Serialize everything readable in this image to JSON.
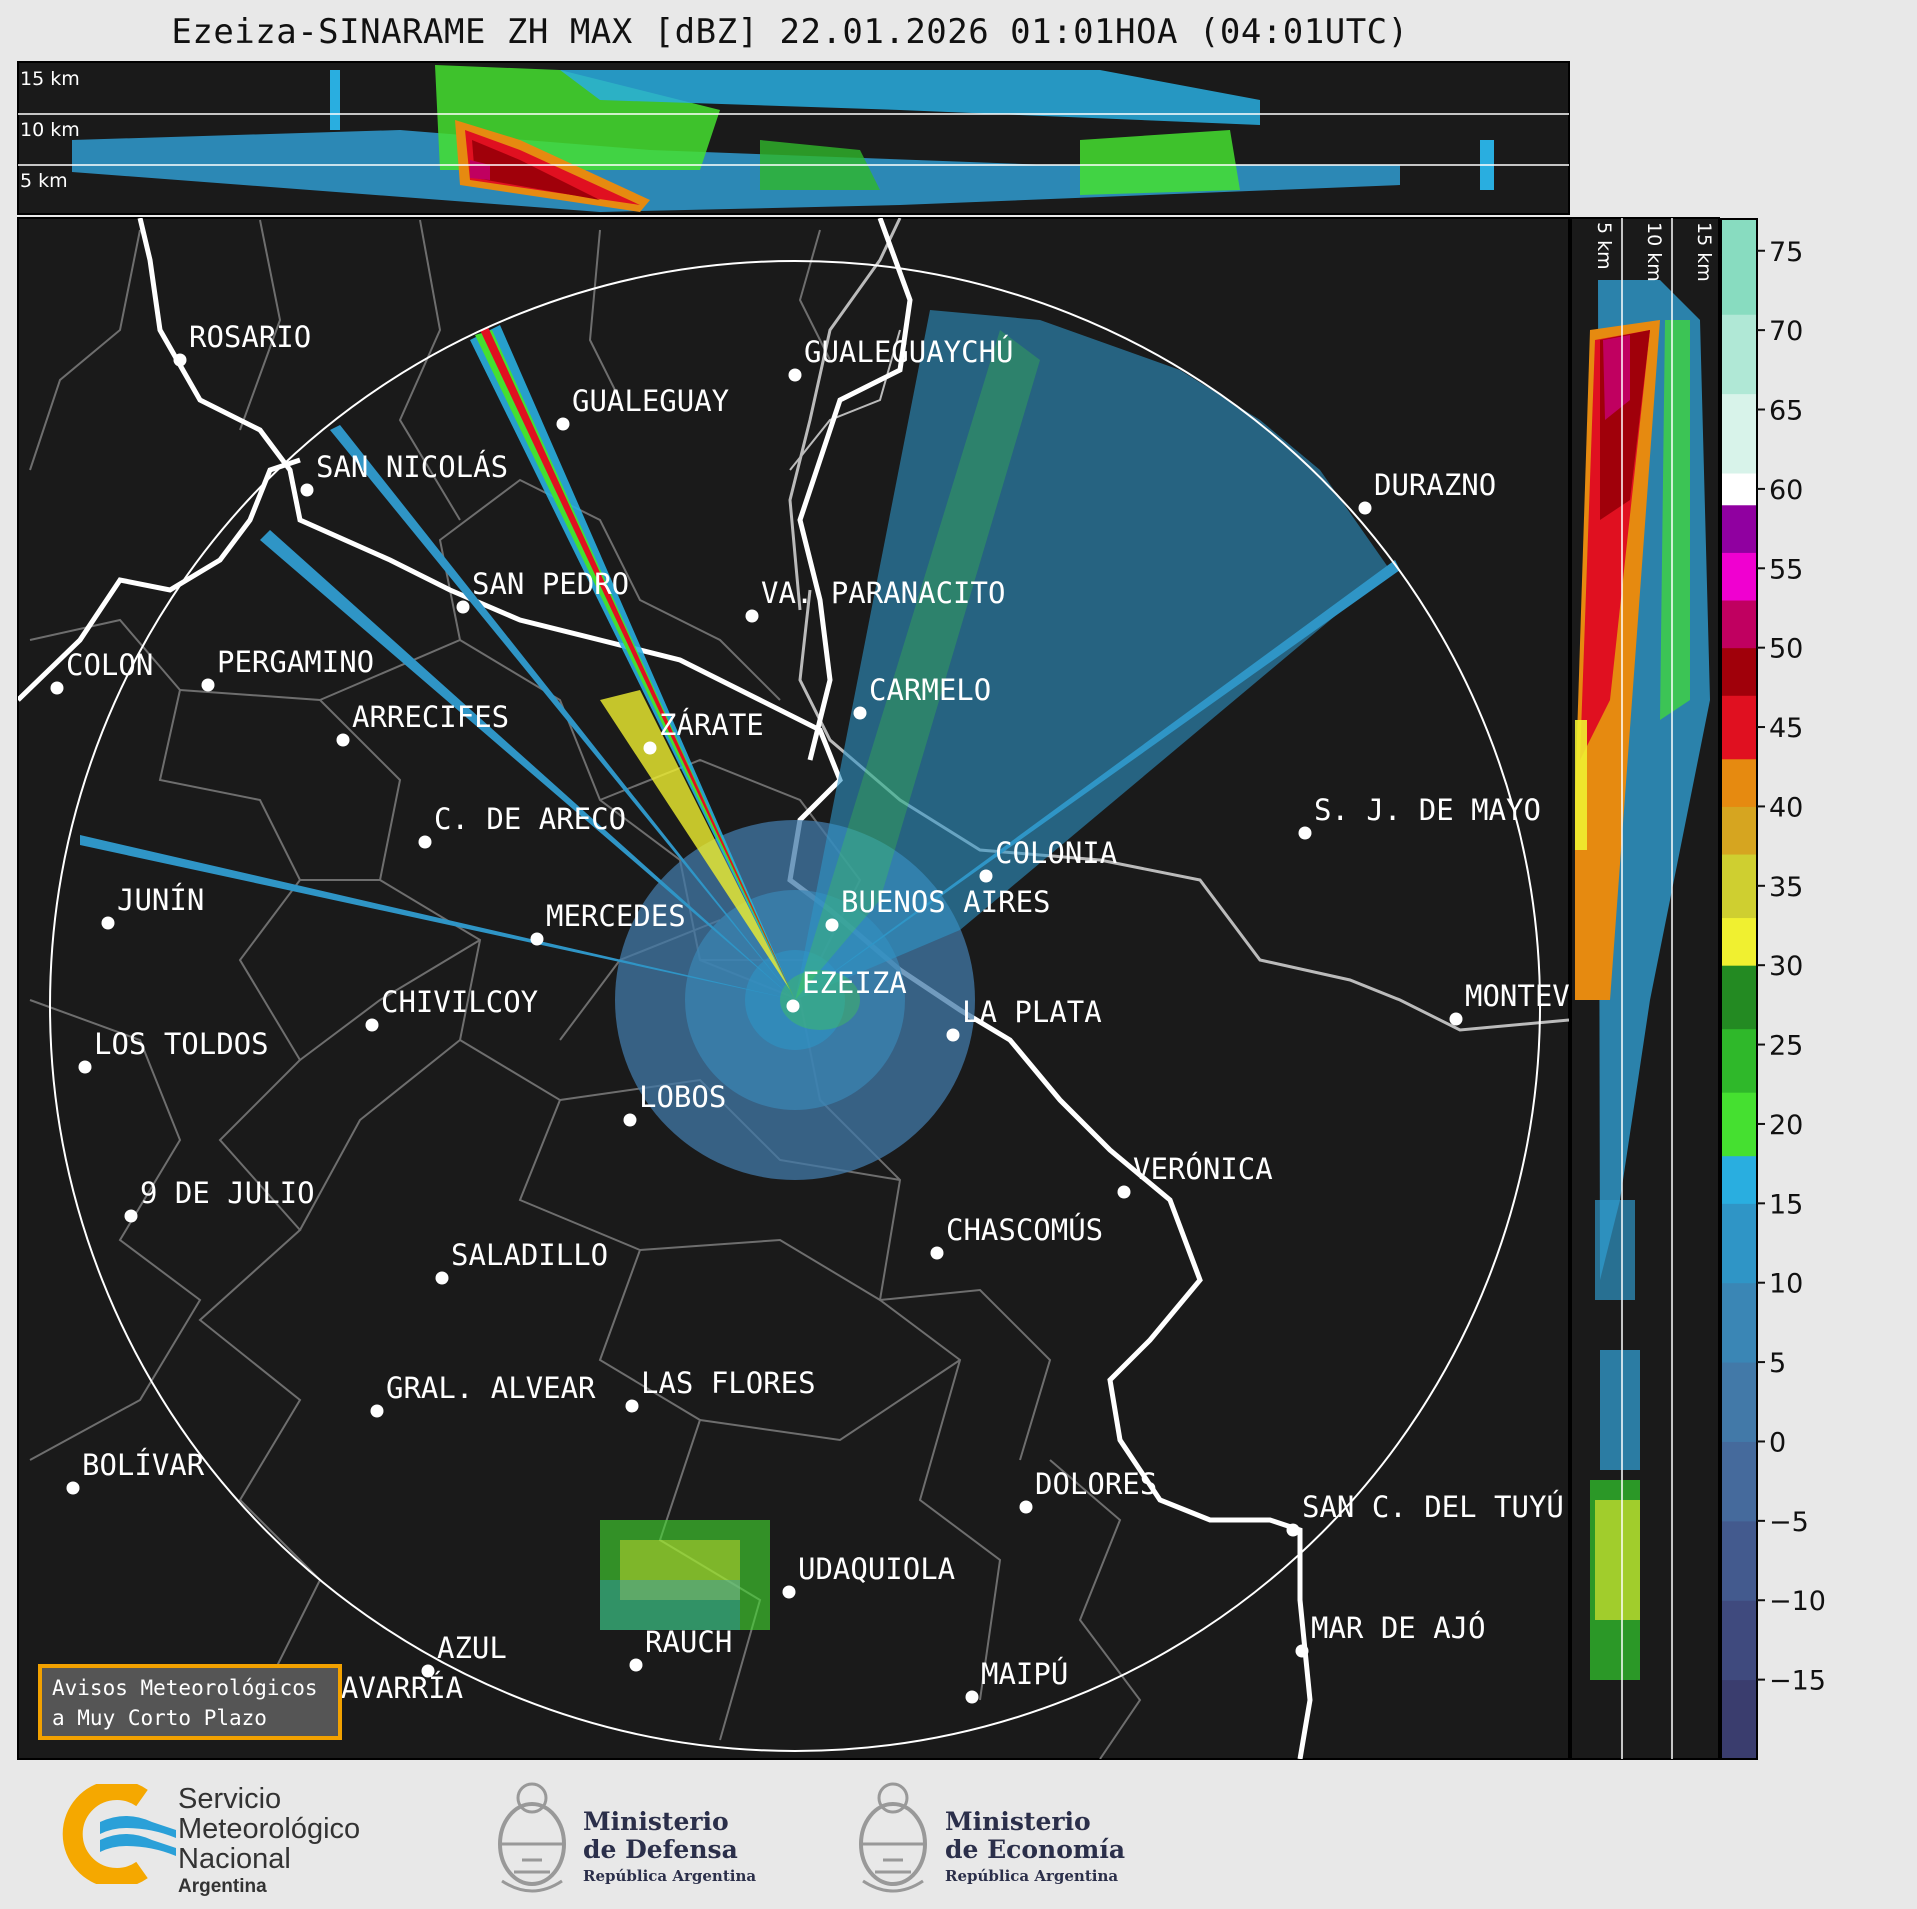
{
  "title": "Ezeiza-SINARAME ZH MAX [dBZ] 22.01.2026 01:01HOA (04:01UTC)",
  "top_panel": {
    "height_labels": [
      "15 km",
      "10 km",
      "5 km"
    ]
  },
  "right_panel": {
    "height_labels": [
      "5 km",
      "10 km",
      "15 km"
    ]
  },
  "colorbar": {
    "unit": "dBZ",
    "ticks": [
      "75",
      "70",
      "65",
      "60",
      "55",
      "50",
      "45",
      "40",
      "35",
      "30",
      "25",
      "20",
      "15",
      "10",
      "5",
      "0",
      "−5",
      "−10",
      "−15"
    ],
    "tick_values": [
      75,
      70,
      65,
      60,
      55,
      50,
      45,
      40,
      35,
      30,
      25,
      20,
      15,
      10,
      5,
      0,
      -5,
      -10,
      -15
    ],
    "range": [
      -20,
      77
    ],
    "stops": [
      {
        "from": -20,
        "to": -15,
        "color": "#3a3d6e"
      },
      {
        "from": -15,
        "to": -10,
        "color": "#3f4a7e"
      },
      {
        "from": -10,
        "to": -5,
        "color": "#435a8e"
      },
      {
        "from": -5,
        "to": 0,
        "color": "#456a9c"
      },
      {
        "from": 0,
        "to": 5,
        "color": "#4279a8"
      },
      {
        "from": 5,
        "to": 10,
        "color": "#3a86b5"
      },
      {
        "from": 10,
        "to": 15,
        "color": "#2f95c6"
      },
      {
        "from": 15,
        "to": 18,
        "color": "#29aee0"
      },
      {
        "from": 18,
        "to": 22,
        "color": "#45e030"
      },
      {
        "from": 22,
        "to": 26,
        "color": "#2fb82a"
      },
      {
        "from": 26,
        "to": 30,
        "color": "#238a22"
      },
      {
        "from": 30,
        "to": 33,
        "color": "#f0f030"
      },
      {
        "from": 33,
        "to": 37,
        "color": "#cfcf30"
      },
      {
        "from": 37,
        "to": 40,
        "color": "#d6a520"
      },
      {
        "from": 40,
        "to": 43,
        "color": "#e68a10"
      },
      {
        "from": 43,
        "to": 47,
        "color": "#e01020"
      },
      {
        "from": 47,
        "to": 50,
        "color": "#a0000a"
      },
      {
        "from": 50,
        "to": 53,
        "color": "#c00060"
      },
      {
        "from": 53,
        "to": 56,
        "color": "#f000d0"
      },
      {
        "from": 56,
        "to": 59,
        "color": "#9000a0"
      },
      {
        "from": 59,
        "to": 61,
        "color": "#ffffff"
      },
      {
        "from": 61,
        "to": 66,
        "color": "#d8f3ea"
      },
      {
        "from": 66,
        "to": 71,
        "color": "#b0e8d6"
      },
      {
        "from": 71,
        "to": 77,
        "color": "#88dcc0"
      }
    ]
  },
  "cities": [
    {
      "name": "ROSARIO"
    },
    {
      "name": "GUALEGUAYCHÚ"
    },
    {
      "name": "GUALEGUAY"
    },
    {
      "name": "SAN NICOLÁS"
    },
    {
      "name": "DURAZNO"
    },
    {
      "name": "SAN PEDRO"
    },
    {
      "name": "VA. PARANACITO"
    },
    {
      "name": "COLON"
    },
    {
      "name": "PERGAMINO"
    },
    {
      "name": "CARMELO"
    },
    {
      "name": "ARRECIFES"
    },
    {
      "name": "ZÁRATE"
    },
    {
      "name": "S. J. DE MAYO"
    },
    {
      "name": "C. DE ARECO"
    },
    {
      "name": "COLONIA"
    },
    {
      "name": "JUNÍN"
    },
    {
      "name": "MERCEDES"
    },
    {
      "name": "BUENOS AIRES"
    },
    {
      "name": "EZEIZA"
    },
    {
      "name": "CHIVILCOY"
    },
    {
      "name": "MONTEV"
    },
    {
      "name": "LA PLATA"
    },
    {
      "name": "LOS TOLDOS"
    },
    {
      "name": "LOBOS"
    },
    {
      "name": "VERÓNICA"
    },
    {
      "name": "9 DE JULIO"
    },
    {
      "name": "CHASCOMÚS"
    },
    {
      "name": "SALADILLO"
    },
    {
      "name": "GRAL. ALVEAR"
    },
    {
      "name": "LAS FLORES"
    },
    {
      "name": "BOLÍVAR"
    },
    {
      "name": "DOLORES"
    },
    {
      "name": "SAN C. DEL TUYÚ"
    },
    {
      "name": "UDAQUIOLA"
    },
    {
      "name": "RAUCH"
    },
    {
      "name": "MAR DE AJÓ"
    },
    {
      "name": "AZUL"
    },
    {
      "name": "OLAVARRÍA"
    },
    {
      "name": "MAIPÚ"
    }
  ],
  "warning_box": {
    "line1": "Avisos Meteorológicos",
    "line2": "a Muy Corto Plazo"
  },
  "footer": {
    "smn": {
      "line1": "Servicio",
      "line2": "Meteorológico",
      "line3": "Nacional",
      "line4": "Argentina"
    },
    "defensa": {
      "line1": "Ministerio",
      "line2": "de Defensa",
      "line3": "República Argentina"
    },
    "economia": {
      "line1": "Ministerio",
      "line2": "de Economía",
      "line3": "República Argentina"
    }
  }
}
